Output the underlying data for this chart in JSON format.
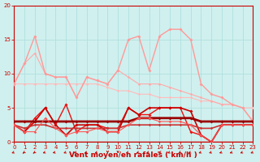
{
  "background_color": "#cff0ee",
  "grid_color": "#aadddd",
  "xlabel": "Vent moyen/en rafales ( km/h )",
  "xlabel_color": "#cc0000",
  "xlabel_fontsize": 6.5,
  "tick_color": "#cc0000",
  "tick_fontsize": 5.0,
  "xlim": [
    0,
    23
  ],
  "ylim": [
    0,
    20
  ],
  "yticks": [
    0,
    5,
    10,
    15,
    20
  ],
  "xticks": [
    0,
    1,
    2,
    3,
    4,
    5,
    6,
    7,
    8,
    9,
    10,
    11,
    12,
    13,
    14,
    15,
    16,
    17,
    18,
    19,
    20,
    21,
    22,
    23
  ],
  "lines": [
    {
      "x": [
        0,
        1,
        2,
        3,
        4,
        5,
        6,
        7,
        8,
        9,
        10,
        11,
        12,
        13,
        14,
        15,
        16,
        17,
        18,
        19,
        20,
        21,
        22,
        23
      ],
      "y": [
        8.5,
        8.5,
        8.5,
        8.5,
        8.5,
        8.5,
        8.5,
        8.5,
        8.5,
        8.0,
        7.5,
        7.5,
        7.0,
        7.0,
        6.5,
        6.5,
        6.5,
        6.5,
        6.0,
        6.0,
        5.5,
        5.5,
        5.0,
        5.0
      ],
      "color": "#ffbbbb",
      "lw": 0.8,
      "marker": "D",
      "markersize": 1.8
    },
    {
      "x": [
        0,
        1,
        2,
        3,
        4,
        5,
        6,
        7,
        8,
        9,
        10,
        11,
        12,
        13,
        14,
        15,
        16,
        17,
        18,
        19,
        20,
        21,
        22,
        23
      ],
      "y": [
        8.5,
        11.5,
        13.0,
        10.0,
        9.5,
        9.5,
        6.5,
        9.5,
        9.0,
        8.5,
        10.5,
        9.5,
        8.5,
        8.5,
        8.5,
        8.0,
        7.5,
        7.0,
        6.5,
        6.0,
        5.5,
        5.5,
        5.0,
        3.0
      ],
      "color": "#ffaaaa",
      "lw": 0.8,
      "marker": "D",
      "markersize": 1.8
    },
    {
      "x": [
        0,
        1,
        2,
        3,
        4,
        5,
        6,
        7,
        8,
        9,
        10,
        11,
        12,
        13,
        14,
        15,
        16,
        17,
        18,
        19,
        20,
        21,
        22,
        23
      ],
      "y": [
        8.5,
        11.5,
        15.5,
        10.0,
        9.5,
        9.5,
        6.5,
        9.5,
        9.0,
        8.5,
        10.5,
        15.0,
        15.5,
        10.5,
        15.5,
        16.5,
        16.5,
        15.0,
        8.5,
        7.0,
        6.5,
        5.5,
        5.0,
        3.0
      ],
      "color": "#ff9999",
      "lw": 1.0,
      "marker": "D",
      "markersize": 2.0
    },
    {
      "x": [
        0,
        1,
        2,
        3,
        4,
        5,
        6,
        7,
        8,
        9,
        10,
        11,
        12,
        13,
        14,
        15,
        16,
        17,
        18,
        19,
        20,
        21,
        22,
        23
      ],
      "y": [
        2.5,
        1.5,
        3.5,
        5.0,
        2.5,
        5.5,
        1.5,
        2.5,
        2.5,
        2.0,
        2.0,
        5.0,
        4.0,
        4.0,
        5.0,
        5.0,
        5.0,
        1.5,
        1.0,
        0.0,
        2.5,
        2.5,
        2.5,
        2.5
      ],
      "color": "#ee1111",
      "lw": 1.0,
      "marker": "D",
      "markersize": 2.0
    },
    {
      "x": [
        0,
        1,
        2,
        3,
        4,
        5,
        6,
        7,
        8,
        9,
        10,
        11,
        12,
        13,
        14,
        15,
        16,
        17,
        18,
        19,
        20,
        21,
        22,
        23
      ],
      "y": [
        2.5,
        1.5,
        3.0,
        5.0,
        2.5,
        1.0,
        2.5,
        2.5,
        2.5,
        1.5,
        1.5,
        5.0,
        4.0,
        5.0,
        5.0,
        5.0,
        5.0,
        4.5,
        1.0,
        0.0,
        2.5,
        2.5,
        2.5,
        2.5
      ],
      "color": "#cc0000",
      "lw": 1.2,
      "marker": "D",
      "markersize": 2.0
    },
    {
      "x": [
        0,
        1,
        2,
        3,
        4,
        5,
        6,
        7,
        8,
        9,
        10,
        11,
        12,
        13,
        14,
        15,
        16,
        17,
        18,
        19,
        20,
        21,
        22,
        23
      ],
      "y": [
        3.0,
        3.0,
        3.0,
        3.0,
        3.0,
        3.0,
        3.0,
        3.0,
        3.0,
        3.0,
        3.0,
        3.0,
        3.5,
        3.5,
        3.5,
        3.5,
        3.5,
        3.5,
        3.0,
        3.0,
        3.0,
        3.0,
        3.0,
        3.0
      ],
      "color": "#990000",
      "lw": 2.0,
      "marker": "D",
      "markersize": 2.0
    },
    {
      "x": [
        0,
        1,
        2,
        3,
        4,
        5,
        6,
        7,
        8,
        9,
        10,
        11,
        12,
        13,
        14,
        15,
        16,
        17,
        18,
        19,
        20,
        21,
        22,
        23
      ],
      "y": [
        2.5,
        2.0,
        2.5,
        2.5,
        2.0,
        2.0,
        2.0,
        2.0,
        2.0,
        2.0,
        2.0,
        2.5,
        2.5,
        2.5,
        2.5,
        2.5,
        2.5,
        2.5,
        2.0,
        2.0,
        2.5,
        2.5,
        2.5,
        2.5
      ],
      "color": "#cc3333",
      "lw": 1.2,
      "marker": "D",
      "markersize": 1.8
    },
    {
      "x": [
        0,
        1,
        2,
        3,
        4,
        5,
        6,
        7,
        8,
        9,
        10,
        11,
        12,
        13,
        14,
        15,
        16,
        17,
        18,
        19,
        20,
        21,
        22,
        23
      ],
      "y": [
        2.5,
        1.5,
        1.5,
        3.5,
        2.0,
        1.0,
        1.5,
        1.5,
        2.0,
        1.5,
        1.5,
        2.5,
        3.5,
        3.5,
        3.0,
        3.0,
        3.0,
        2.5,
        1.0,
        0.0,
        2.5,
        2.5,
        2.5,
        2.5
      ],
      "color": "#ff5555",
      "lw": 0.8,
      "marker": "D",
      "markersize": 1.8
    }
  ],
  "arrow_color": "#cc0000",
  "spine_color": "#cc0000",
  "hline_color": "#cc0000"
}
